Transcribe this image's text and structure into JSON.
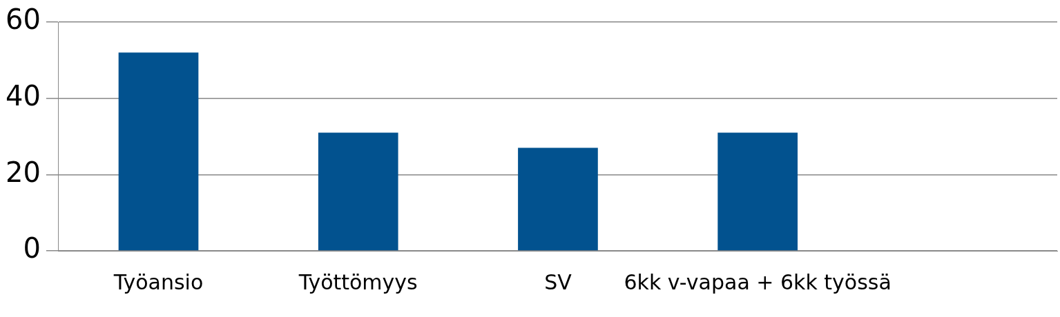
{
  "chart_data": {
    "type": "bar",
    "categories": [
      "Työansio",
      "Työttömyys",
      "SV",
      "6kk v-vapaa + 6kk työssä",
      null
    ],
    "values": [
      52,
      31,
      27,
      31,
      null
    ],
    "color": "#02528f",
    "ylim": [
      0,
      60
    ],
    "yticks": [
      0,
      20,
      40,
      60
    ],
    "grid": "y",
    "legend": false
  }
}
